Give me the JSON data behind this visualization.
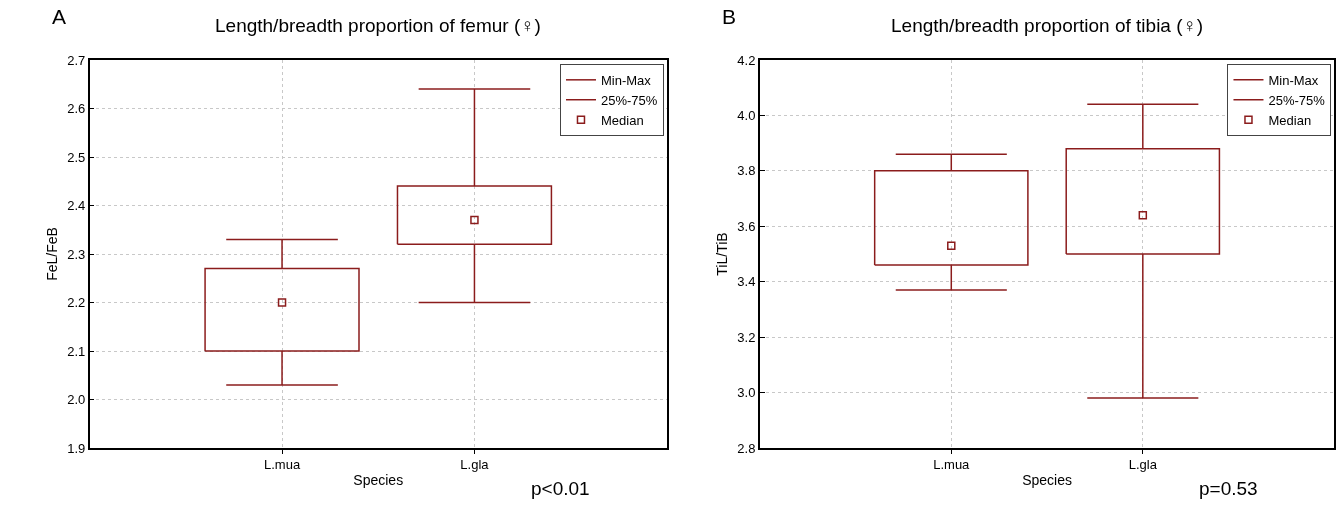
{
  "chart_data": [
    {
      "type": "box",
      "title": "Length/breadth proportion of femur (♀)",
      "xlabel": "Species",
      "ylabel": "FeL/FeB",
      "categories": [
        "L.mua",
        "L.gla"
      ],
      "series": [
        {
          "name": "Min-Max",
          "color": "#8b1c1c",
          "boxes": [
            {
              "low": 2.03,
              "q1": 2.1,
              "median": 2.2,
              "q3": 2.27,
              "high": 2.33
            },
            {
              "low": 2.2,
              "q1": 2.32,
              "median": 2.37,
              "q3": 2.44,
              "high": 2.64
            }
          ]
        },
        {
          "name": "25%-75%",
          "color": "#8b1c1c",
          "values": [
            null,
            null
          ]
        },
        {
          "name": "Median",
          "color": "#8b1c1c",
          "values": [
            null,
            null
          ]
        }
      ],
      "ylim": [
        1.9,
        2.7
      ],
      "yticks": [
        1.9,
        {
          "value": 2,
          "label": "2.0"
        },
        2.1,
        2.2,
        2.3,
        2.4,
        2.5,
        2.6,
        2.7
      ],
      "grid": true,
      "legend": "top right",
      "marker": "square",
      "annotations": [
        "A",
        "p<0.01"
      ]
    },
    {
      "type": "box",
      "title": "Length/breadth proportion of tibia (♀)",
      "xlabel": "Species",
      "ylabel": "TiL/TiB",
      "categories": [
        "L.mua",
        "L.gla"
      ],
      "series": [
        {
          "name": "Min-Max",
          "color": "#8b1c1c",
          "boxes": [
            {
              "low": 3.37,
              "q1": 3.46,
              "median": 3.53,
              "q3": 3.8,
              "high": 3.86
            },
            {
              "low": 2.98,
              "q1": 3.5,
              "median": 3.64,
              "q3": 3.88,
              "high": 4.04
            }
          ]
        },
        {
          "name": "25%-75%",
          "color": "#8b1c1c",
          "values": [
            null,
            null
          ]
        },
        {
          "name": "Median",
          "color": "#8b1c1c",
          "values": [
            null,
            null
          ]
        }
      ],
      "ylim": [
        2.8,
        4.2
      ],
      "yticks": [
        2.8,
        {
          "value": 3,
          "label": "3.0"
        },
        3.2,
        3.4,
        3.6,
        3.8,
        {
          "value": 4,
          "label": "4.0"
        },
        4.2
      ],
      "grid": true,
      "legend": "top right",
      "marker": "square",
      "annotations": [
        "B",
        "p=0.53"
      ]
    }
  ]
}
